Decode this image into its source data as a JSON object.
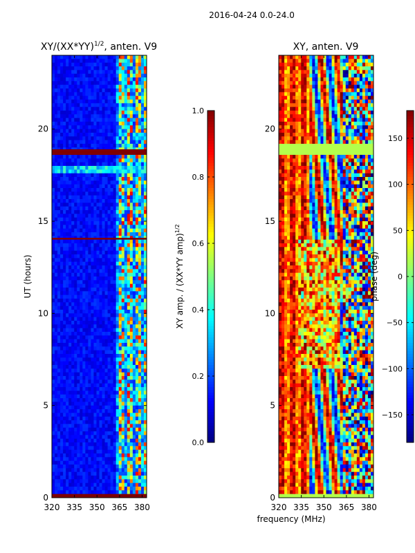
{
  "suptitle": "2016-04-24 0.0-24.0",
  "chart_data": [
    {
      "type": "heatmap",
      "title_main": "XY/(XX*YY)",
      "title_exp": "1/2",
      "title_rest": ", anten. V9",
      "ylabel": "UT (hours)",
      "xlabel": "",
      "xlim": [
        320,
        383
      ],
      "ylim": [
        0,
        24
      ],
      "xticks": [
        "320",
        "335",
        "350",
        "365",
        "380"
      ],
      "xtick_values": [
        320,
        335,
        350,
        365,
        380
      ],
      "yticks": [
        "0",
        "5",
        "10",
        "15",
        "20"
      ],
      "ytick_values": [
        0,
        5,
        10,
        15,
        20
      ],
      "colorbar": {
        "label_main": "XY amp. / (XX*YY amp)",
        "label_exp": "1/2",
        "range": [
          0.0,
          1.0
        ],
        "ticks": [
          "0.0",
          "0.2",
          "0.4",
          "0.6",
          "0.8",
          "1.0"
        ],
        "tick_values": [
          0.0,
          0.2,
          0.4,
          0.6,
          0.8,
          1.0
        ]
      },
      "flagged_bands_hours": [
        [
          0.0,
          0.2
        ],
        [
          14.0,
          14.1
        ],
        [
          18.6,
          18.9
        ]
      ]
    },
    {
      "type": "heatmap",
      "title": "XY, anten. V9",
      "ylabel": "",
      "xlabel": "frequency (MHz)",
      "xlim": [
        320,
        383
      ],
      "ylim": [
        0,
        24
      ],
      "xticks": [
        "320",
        "335",
        "350",
        "365",
        "380"
      ],
      "xtick_values": [
        320,
        335,
        350,
        365,
        380
      ],
      "yticks": [
        "0",
        "5",
        "10",
        "15",
        "20"
      ],
      "ytick_values": [
        0,
        5,
        10,
        15,
        20
      ],
      "colorbar": {
        "label": "phase (deg)",
        "range": [
          -180,
          180
        ],
        "ticks": [
          "−150",
          "−100",
          "−50",
          "0",
          "50",
          "100",
          "150"
        ],
        "tick_values": [
          -150,
          -100,
          -50,
          0,
          50,
          100,
          150
        ]
      },
      "flagged_bands_hours": [
        [
          0.0,
          0.2
        ],
        [
          18.9,
          19.2
        ],
        [
          18.6,
          18.9
        ]
      ]
    }
  ],
  "colors": {
    "jet_low": "#00007f",
    "jet_high": "#7f0000"
  }
}
